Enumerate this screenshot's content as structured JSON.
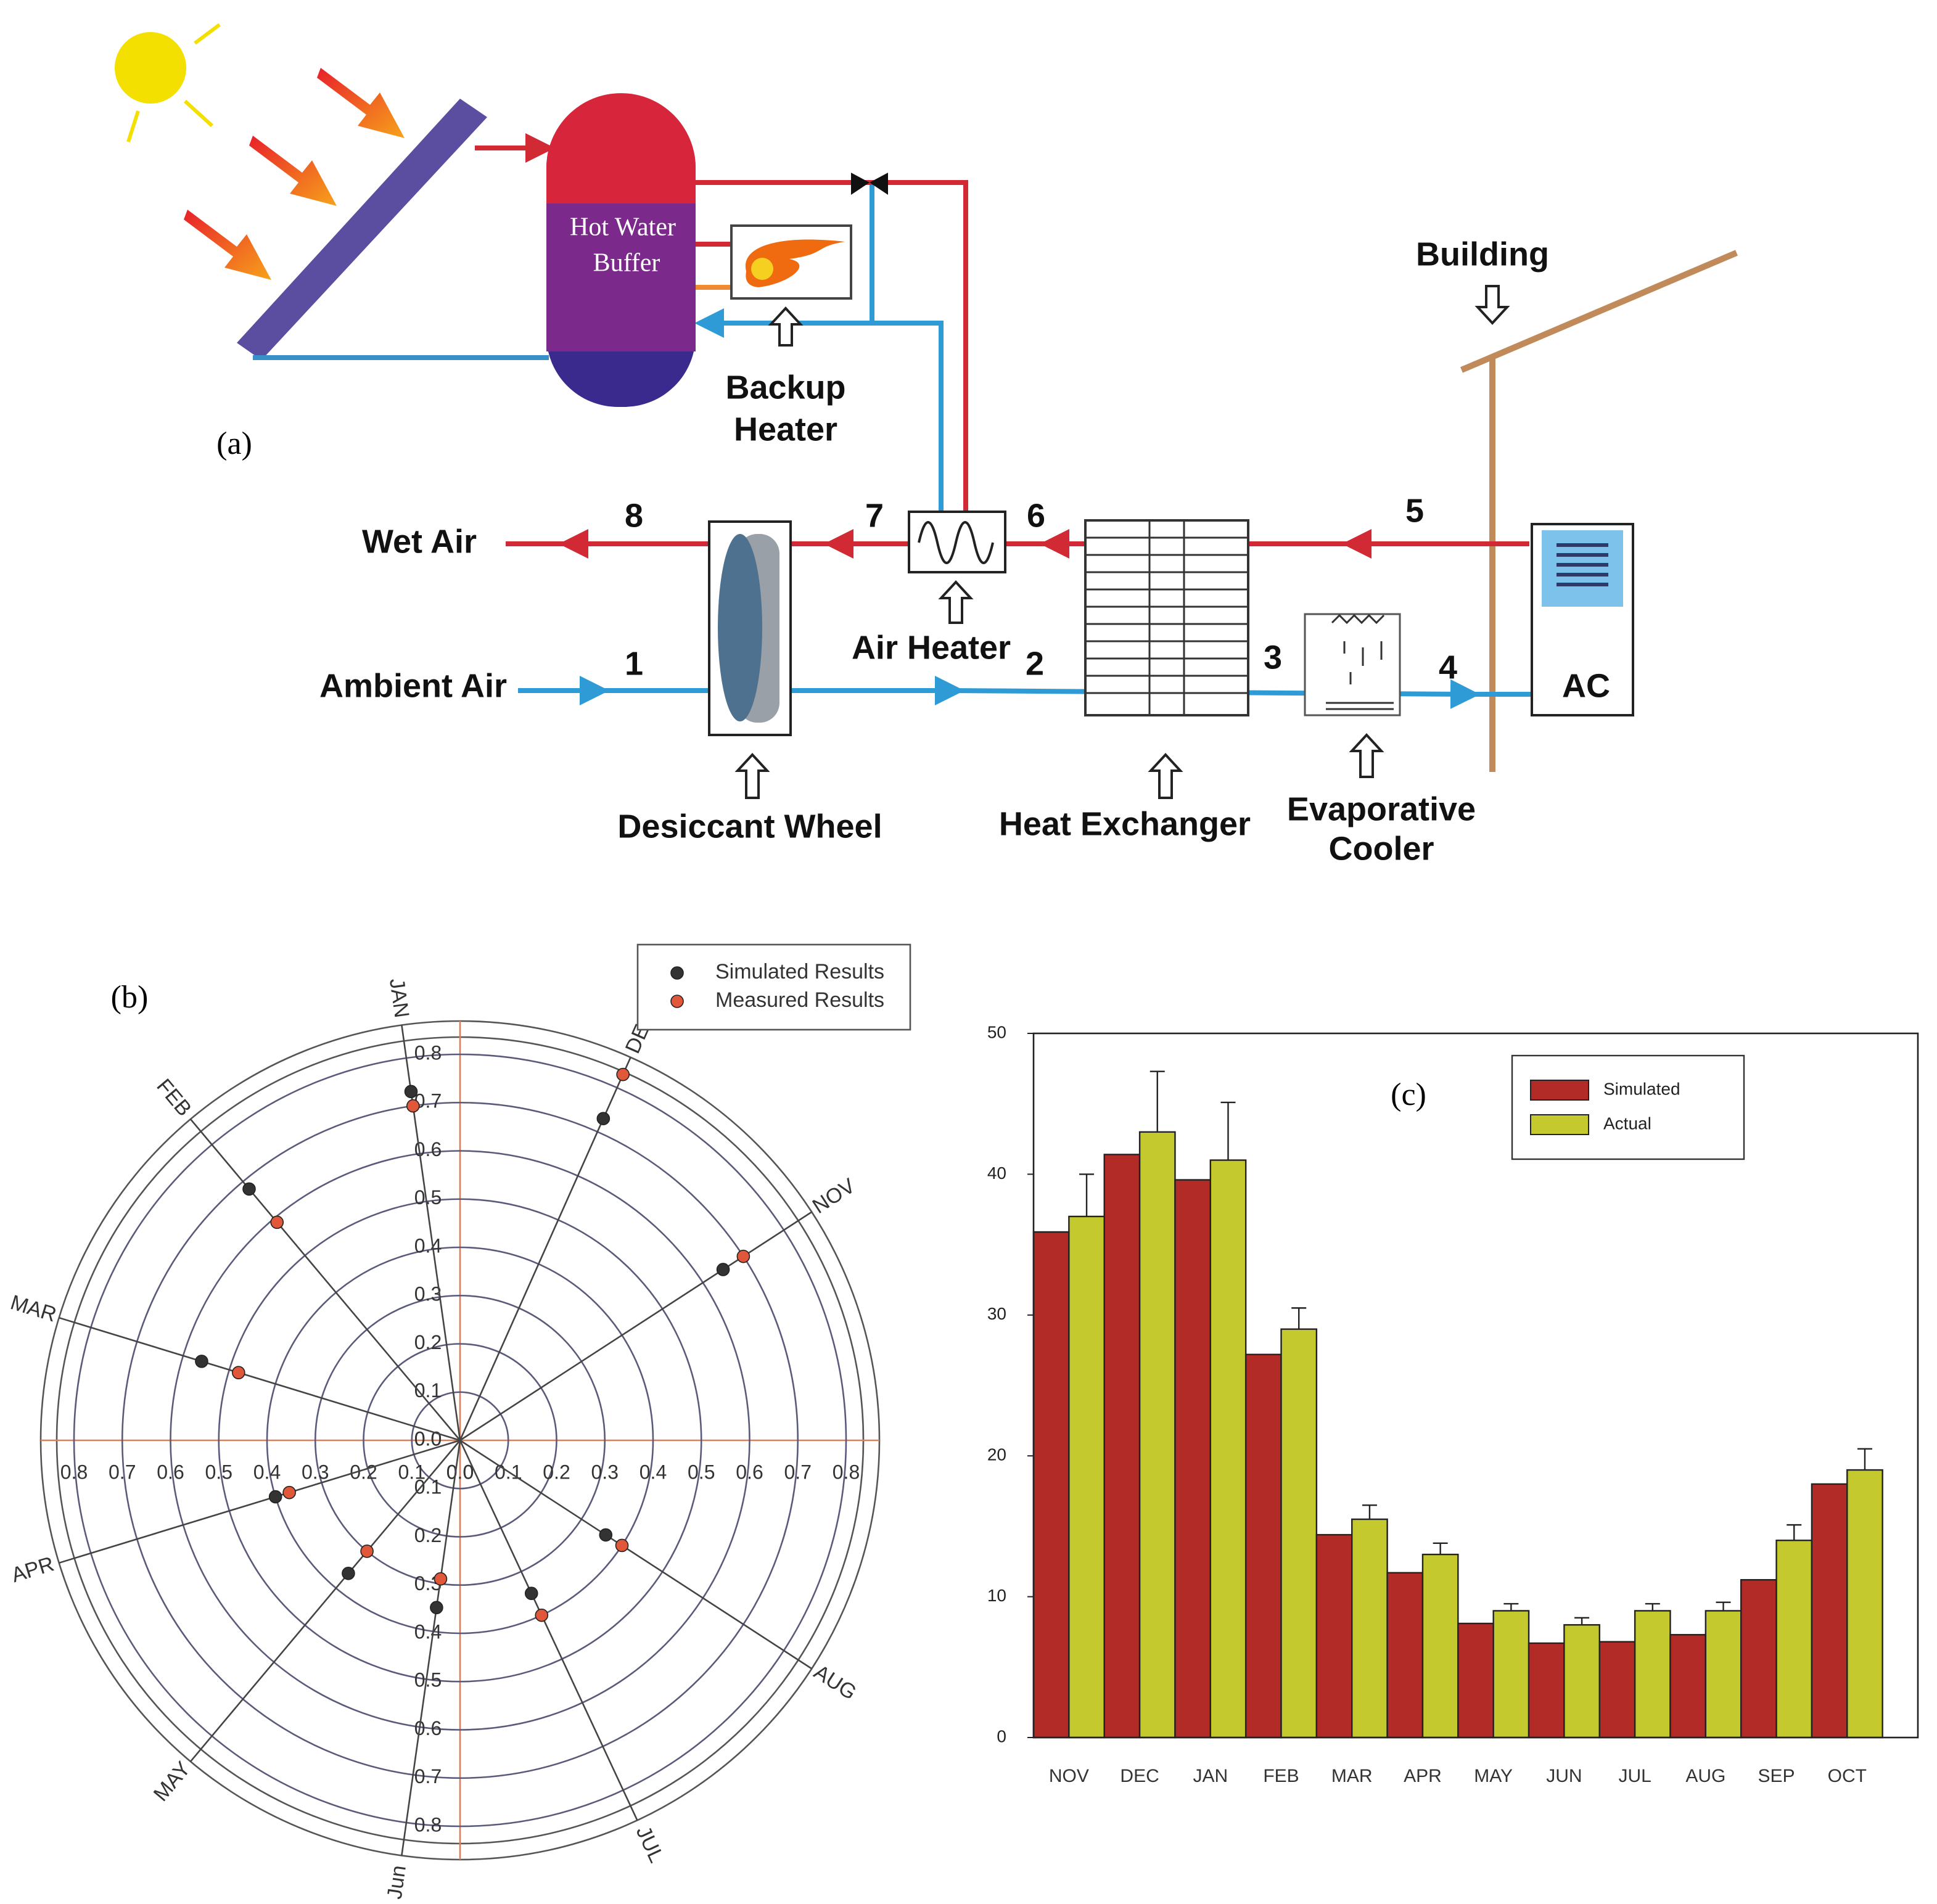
{
  "diagram": {
    "panel_label": "(a)",
    "tank": [
      "Hot Water",
      "Buffer"
    ],
    "backup_heater": [
      "Backup",
      "Heater"
    ],
    "building": "Building",
    "wet_air": "Wet Air",
    "ambient_air": "Ambient Air",
    "desiccant_wheel": "Desiccant Wheel",
    "air_heater": "Air Heater",
    "heat_exchanger": "Heat Exchanger",
    "evaporative_cooler": [
      "Evaporative",
      "Cooler"
    ],
    "ac": "AC",
    "states": [
      "1",
      "2",
      "3",
      "4",
      "5",
      "6",
      "7",
      "8"
    ]
  },
  "chart_data": [
    {
      "type": "polar",
      "panel_label": "(b)",
      "categories": [
        "JAN",
        "DEC",
        "NOV",
        "AUG",
        "JUL",
        "Jun",
        "MAY",
        "APR",
        "MAR",
        "FEB"
      ],
      "theta": [
        -8,
        24,
        57,
        123,
        155,
        188,
        220,
        253,
        287,
        320
      ],
      "series": [
        {
          "name": "Simulated Results",
          "color": "#333333",
          "values": [
            0.73,
            0.73,
            0.65,
            0.36,
            0.35,
            0.35,
            0.36,
            0.4,
            0.56,
            0.68
          ]
        },
        {
          "name": "Measured Results",
          "color": "#e0573a",
          "values": [
            0.7,
            0.83,
            0.7,
            0.4,
            0.4,
            0.29,
            0.3,
            0.37,
            0.48,
            0.59
          ]
        }
      ],
      "rlim": [
        0,
        0.8
      ],
      "rticks": [
        {
          "value": 0,
          "label": "0.0"
        },
        0.1,
        0.2,
        0.3,
        0.4,
        0.5,
        0.6,
        0.7,
        0.8
      ],
      "legend": "upper right"
    },
    {
      "type": "bar",
      "annotation": "(c)",
      "categories": [
        "NOV",
        "DEC",
        "JAN",
        "FEB",
        "MAR",
        "APR",
        "MAY",
        "JUN",
        "JUL",
        "AUG",
        "SEP",
        "OCT"
      ],
      "series": [
        {
          "name": "Simulated",
          "color": "#b22b26",
          "values": [
            35.9,
            41.4,
            39.6,
            27.2,
            14.4,
            11.7,
            8.1,
            6.7,
            6.8,
            7.3,
            11.2,
            18.0
          ]
        },
        {
          "name": "Actual",
          "color": "#c4c92e",
          "values": [
            37.0,
            43.0,
            41.0,
            29.0,
            15.5,
            13.0,
            9.0,
            8.0,
            9.0,
            9.0,
            14.0,
            19.0
          ],
          "errors": [
            3.0,
            4.3,
            4.1,
            1.5,
            1.0,
            0.8,
            0.5,
            0.5,
            0.5,
            0.6,
            1.1,
            1.5
          ]
        }
      ],
      "ylim": [
        0,
        50
      ],
      "yticks": [
        0,
        10,
        20,
        30,
        40,
        50
      ],
      "legend": "upper center"
    }
  ]
}
